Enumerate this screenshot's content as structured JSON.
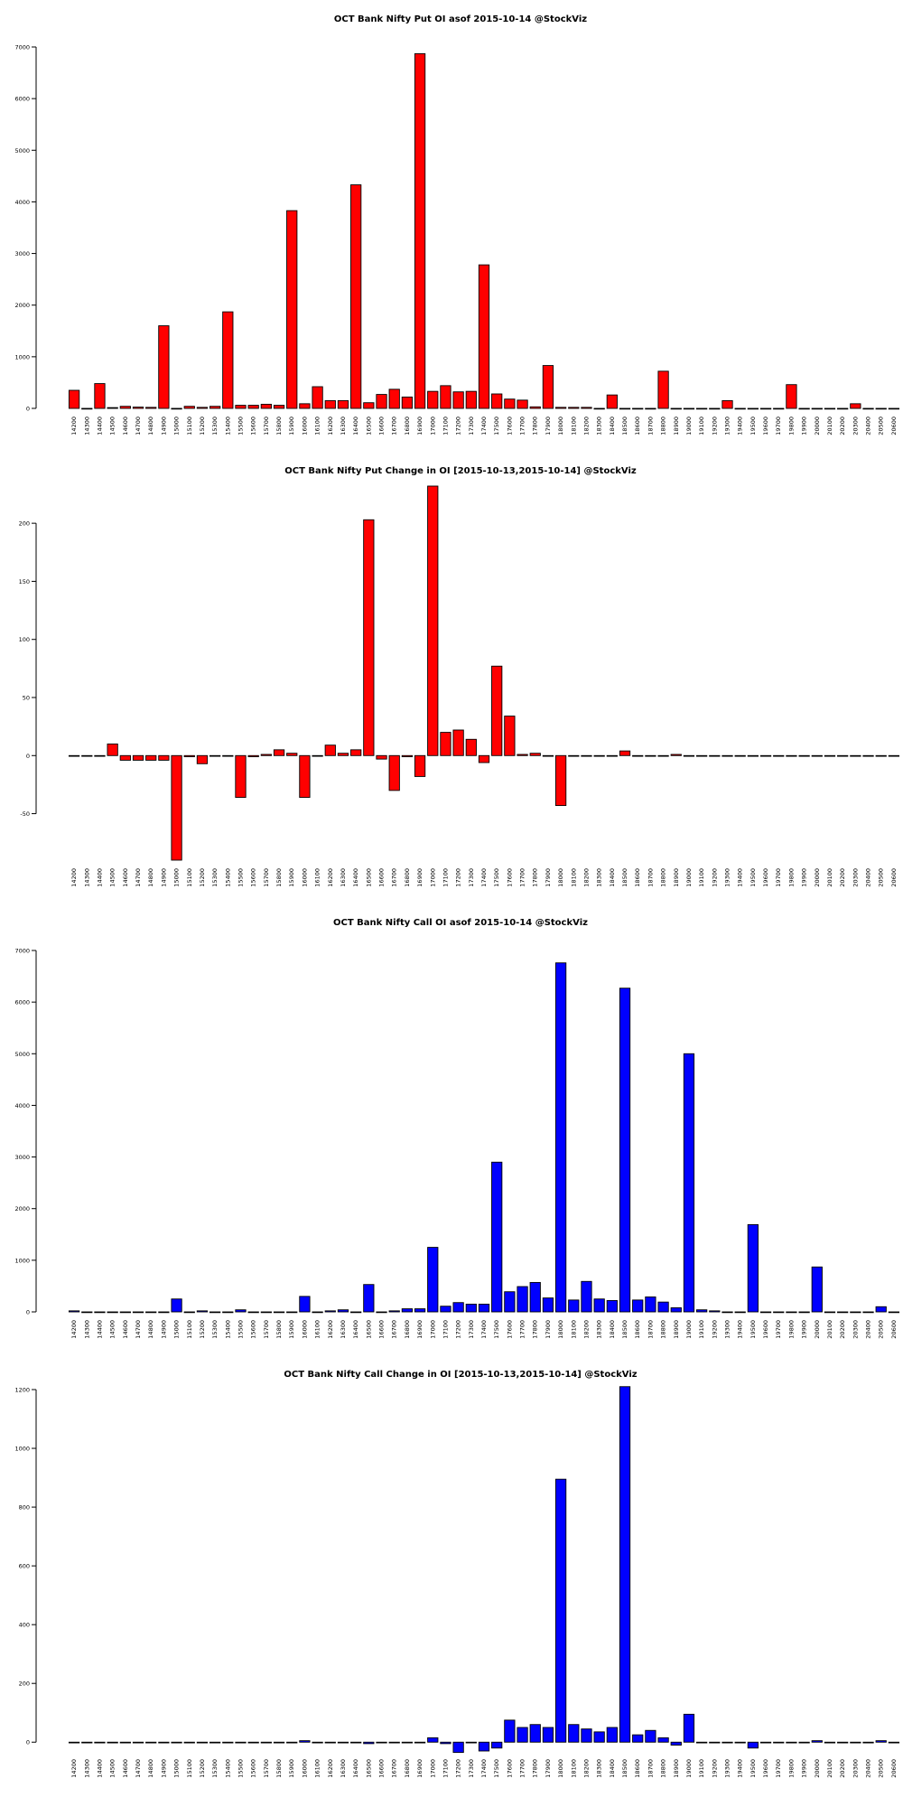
{
  "strikes": [
    "14200",
    "14300",
    "14400",
    "14500",
    "14600",
    "14700",
    "14800",
    "14900",
    "15000",
    "15100",
    "15200",
    "15300",
    "15400",
    "15500",
    "15600",
    "15700",
    "15800",
    "15900",
    "16000",
    "16100",
    "16200",
    "16300",
    "16400",
    "16500",
    "16600",
    "16700",
    "16800",
    "16900",
    "17000",
    "17100",
    "17200",
    "17300",
    "17400",
    "17500",
    "17600",
    "17700",
    "17800",
    "17900",
    "18000",
    "18100",
    "18200",
    "18300",
    "18400",
    "18500",
    "18600",
    "18700",
    "18800",
    "18900",
    "19000",
    "19100",
    "19200",
    "19300",
    "19400",
    "19500",
    "19600",
    "19700",
    "19800",
    "19900",
    "20000",
    "20100",
    "20200",
    "20300",
    "20400",
    "20500",
    "20600"
  ],
  "colors": {
    "put": "#ff0000",
    "call": "#0000ff",
    "stroke": "#000000"
  },
  "chart_data": [
    {
      "type": "bar",
      "title": "OCT Bank Nifty Put OI asof 2015-10-14 @StockViz",
      "series_color": "put",
      "ylim": [
        0,
        7000
      ],
      "yticks": [
        0,
        1000,
        2000,
        3000,
        4000,
        5000,
        6000,
        7000
      ],
      "values": [
        350,
        0,
        480,
        15,
        40,
        25,
        20,
        1600,
        0,
        40,
        20,
        40,
        1870,
        60,
        60,
        80,
        60,
        3830,
        90,
        420,
        150,
        150,
        4330,
        110,
        270,
        370,
        220,
        6870,
        330,
        440,
        320,
        330,
        2780,
        280,
        180,
        160,
        30,
        830,
        20,
        20,
        20,
        0,
        260,
        0,
        0,
        0,
        720,
        0,
        0,
        0,
        0,
        150,
        0,
        0,
        0,
        0,
        460,
        0,
        0,
        0,
        0,
        90,
        0,
        0,
        0
      ]
    },
    {
      "type": "bar",
      "title": "OCT Bank Nifty Put Change in OI [2015-10-13,2015-10-14] @StockViz",
      "series_color": "put",
      "ylim": [
        -90,
        232
      ],
      "yticks": [
        -50,
        0,
        50,
        100,
        150,
        200
      ],
      "values": [
        0,
        0,
        0,
        10,
        -4,
        -4,
        -4,
        -4,
        -90,
        -1,
        -7,
        0,
        0,
        -36,
        -1,
        1,
        5,
        2,
        -36,
        0,
        9,
        2,
        5,
        203,
        -3,
        -30,
        -1,
        -18,
        232,
        20,
        22,
        14,
        -6,
        77,
        34,
        1,
        2,
        0,
        -43,
        0,
        0,
        0,
        0,
        4,
        0,
        0,
        0,
        1,
        0,
        0,
        0,
        0,
        0,
        0,
        0,
        0,
        0,
        0,
        0,
        0,
        0,
        0,
        0,
        0,
        0
      ]
    },
    {
      "type": "bar",
      "title": "OCT Bank Nifty Call OI asof 2015-10-14 @StockViz",
      "series_color": "call",
      "ylim": [
        0,
        7000
      ],
      "yticks": [
        0,
        1000,
        2000,
        3000,
        4000,
        5000,
        6000,
        7000
      ],
      "values": [
        20,
        0,
        0,
        0,
        0,
        0,
        0,
        0,
        250,
        0,
        20,
        0,
        0,
        40,
        0,
        0,
        0,
        0,
        300,
        0,
        20,
        40,
        0,
        530,
        0,
        20,
        60,
        60,
        1250,
        110,
        180,
        150,
        150,
        2900,
        390,
        490,
        570,
        270,
        6760,
        230,
        590,
        250,
        220,
        6270,
        230,
        290,
        190,
        80,
        5000,
        40,
        20,
        0,
        0,
        1690,
        0,
        0,
        0,
        0,
        870,
        0,
        0,
        0,
        0,
        100,
        0
      ]
    },
    {
      "type": "bar",
      "title": "OCT Bank Nifty Call Change in OI [2015-10-13,2015-10-14] @StockViz",
      "series_color": "call",
      "ylim": [
        -30,
        1200
      ],
      "yticks": [
        0,
        200,
        400,
        600,
        800,
        1000,
        1200
      ],
      "values": [
        0,
        0,
        0,
        0,
        0,
        0,
        0,
        0,
        0,
        0,
        0,
        0,
        0,
        0,
        0,
        0,
        0,
        0,
        5,
        0,
        0,
        0,
        0,
        -5,
        0,
        0,
        0,
        0,
        15,
        -5,
        -35,
        0,
        -30,
        -20,
        75,
        50,
        60,
        50,
        895,
        60,
        45,
        35,
        50,
        1210,
        25,
        40,
        15,
        -10,
        95,
        0,
        0,
        0,
        0,
        -20,
        0,
        0,
        0,
        0,
        5,
        0,
        0,
        0,
        0,
        5,
        0
      ]
    }
  ]
}
